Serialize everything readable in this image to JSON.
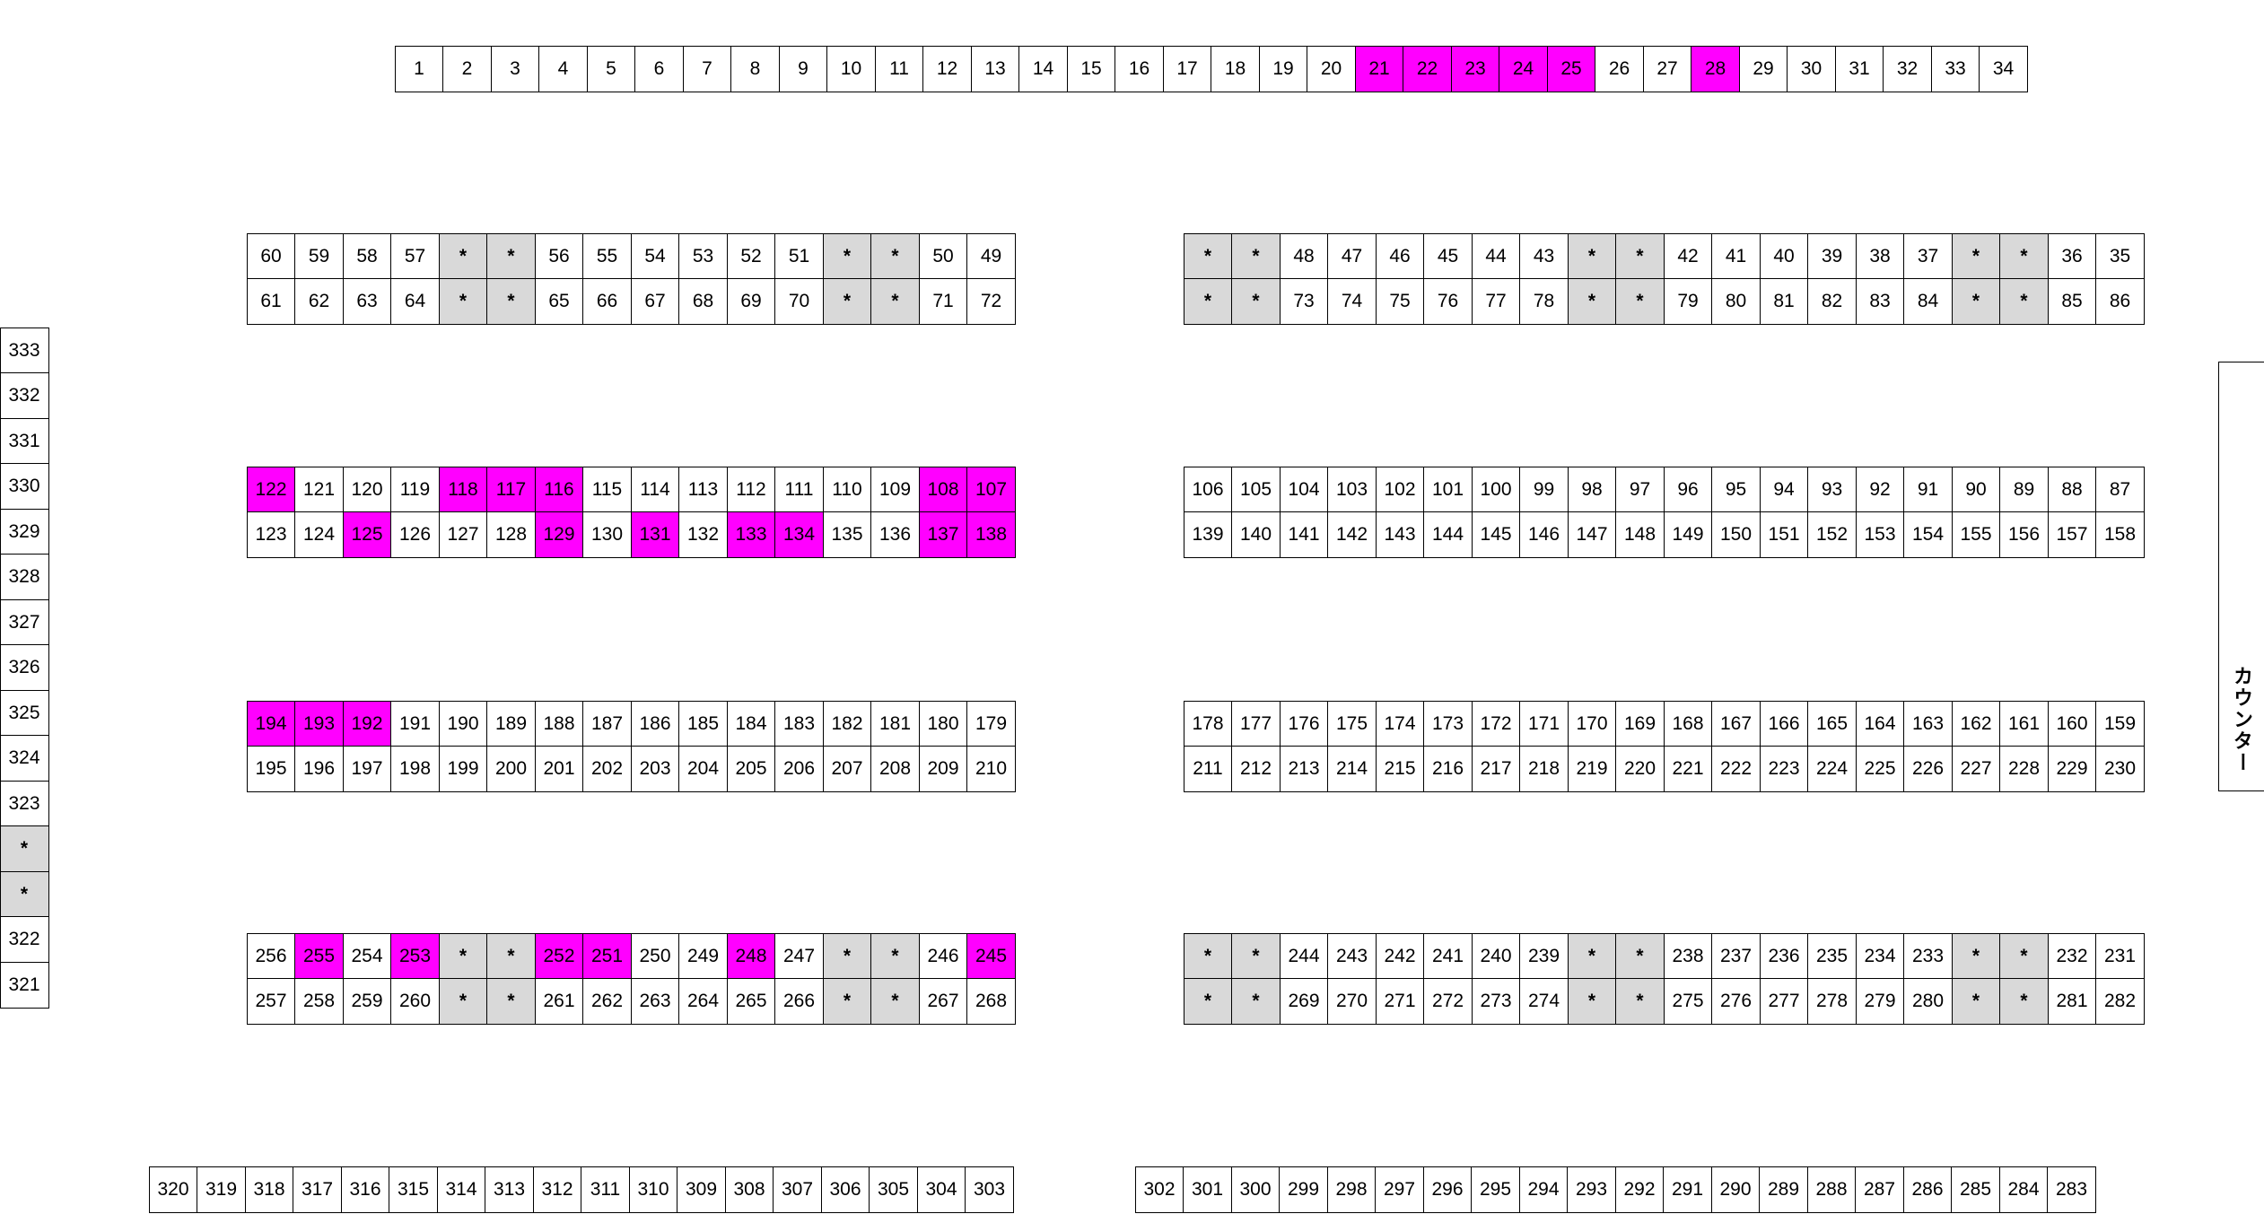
{
  "colors": {
    "reserved": "#ff00ff",
    "unavailable": "#d9d9d9",
    "available": "#ffffff"
  },
  "counter_label": "カウンター",
  "reserved": [
    "21",
    "22",
    "23",
    "24",
    "25",
    "28",
    "122",
    "118",
    "117",
    "116",
    "108",
    "107",
    "125",
    "129",
    "131",
    "133",
    "134",
    "137",
    "138",
    "194",
    "193",
    "192",
    "255",
    "253",
    "252",
    "251",
    "248",
    "245"
  ],
  "blocks": {
    "top": [
      [
        "1",
        "2",
        "3",
        "4",
        "5",
        "6",
        "7",
        "8",
        "9",
        "10",
        "11",
        "12",
        "13",
        "14",
        "15",
        "16",
        "17",
        "18",
        "19",
        "20",
        "21",
        "22",
        "23",
        "24",
        "25",
        "26",
        "27",
        "28",
        "29",
        "30",
        "31",
        "32",
        "33",
        "34"
      ]
    ],
    "left_a": [
      [
        "60",
        "59",
        "58",
        "57",
        "*",
        "*",
        "56",
        "55",
        "54",
        "53",
        "52",
        "51",
        "*",
        "*",
        "50",
        "49"
      ],
      [
        "61",
        "62",
        "63",
        "64",
        "*",
        "*",
        "65",
        "66",
        "67",
        "68",
        "69",
        "70",
        "*",
        "*",
        "71",
        "72"
      ]
    ],
    "right_a": [
      [
        "*",
        "*",
        "48",
        "47",
        "46",
        "45",
        "44",
        "43",
        "*",
        "*",
        "42",
        "41",
        "40",
        "39",
        "38",
        "37",
        "*",
        "*",
        "36",
        "35"
      ],
      [
        "*",
        "*",
        "73",
        "74",
        "75",
        "76",
        "77",
        "78",
        "*",
        "*",
        "79",
        "80",
        "81",
        "82",
        "83",
        "84",
        "*",
        "*",
        "85",
        "86"
      ]
    ],
    "left_b": [
      [
        "122",
        "121",
        "120",
        "119",
        "118",
        "117",
        "116",
        "115",
        "114",
        "113",
        "112",
        "111",
        "110",
        "109",
        "108",
        "107"
      ],
      [
        "123",
        "124",
        "125",
        "126",
        "127",
        "128",
        "129",
        "130",
        "131",
        "132",
        "133",
        "134",
        "135",
        "136",
        "137",
        "138"
      ]
    ],
    "right_b": [
      [
        "106",
        "105",
        "104",
        "103",
        "102",
        "101",
        "100",
        "99",
        "98",
        "97",
        "96",
        "95",
        "94",
        "93",
        "92",
        "91",
        "90",
        "89",
        "88",
        "87"
      ],
      [
        "139",
        "140",
        "141",
        "142",
        "143",
        "144",
        "145",
        "146",
        "147",
        "148",
        "149",
        "150",
        "151",
        "152",
        "153",
        "154",
        "155",
        "156",
        "157",
        "158"
      ]
    ],
    "left_c": [
      [
        "194",
        "193",
        "192",
        "191",
        "190",
        "189",
        "188",
        "187",
        "186",
        "185",
        "184",
        "183",
        "182",
        "181",
        "180",
        "179"
      ],
      [
        "195",
        "196",
        "197",
        "198",
        "199",
        "200",
        "201",
        "202",
        "203",
        "204",
        "205",
        "206",
        "207",
        "208",
        "209",
        "210"
      ]
    ],
    "right_c": [
      [
        "178",
        "177",
        "176",
        "175",
        "174",
        "173",
        "172",
        "171",
        "170",
        "169",
        "168",
        "167",
        "166",
        "165",
        "164",
        "163",
        "162",
        "161",
        "160",
        "159"
      ],
      [
        "211",
        "212",
        "213",
        "214",
        "215",
        "216",
        "217",
        "218",
        "219",
        "220",
        "221",
        "222",
        "223",
        "224",
        "225",
        "226",
        "227",
        "228",
        "229",
        "230"
      ]
    ],
    "left_d": [
      [
        "256",
        "255",
        "254",
        "253",
        "*",
        "*",
        "252",
        "251",
        "250",
        "249",
        "248",
        "247",
        "*",
        "*",
        "246",
        "245"
      ],
      [
        "257",
        "258",
        "259",
        "260",
        "*",
        "*",
        "261",
        "262",
        "263",
        "264",
        "265",
        "266",
        "*",
        "*",
        "267",
        "268"
      ]
    ],
    "right_d": [
      [
        "*",
        "*",
        "244",
        "243",
        "242",
        "241",
        "240",
        "239",
        "*",
        "*",
        "238",
        "237",
        "236",
        "235",
        "234",
        "233",
        "*",
        "*",
        "232",
        "231"
      ],
      [
        "*",
        "*",
        "269",
        "270",
        "271",
        "272",
        "273",
        "274",
        "*",
        "*",
        "275",
        "276",
        "277",
        "278",
        "279",
        "280",
        "*",
        "*",
        "281",
        "282"
      ]
    ],
    "bottom_left": [
      [
        "320",
        "319",
        "318",
        "317",
        "316",
        "315",
        "314",
        "313",
        "312",
        "311",
        "310",
        "309",
        "308",
        "307",
        "306",
        "305",
        "304",
        "303"
      ]
    ],
    "bottom_right": [
      [
        "302",
        "301",
        "300",
        "299",
        "298",
        "297",
        "296",
        "295",
        "294",
        "293",
        "292",
        "291",
        "290",
        "289",
        "288",
        "287",
        "286",
        "285",
        "284",
        "283"
      ]
    ],
    "left_column": [
      [
        "333"
      ],
      [
        "332"
      ],
      [
        "331"
      ],
      [
        "330"
      ],
      [
        "329"
      ],
      [
        "328"
      ],
      [
        "327"
      ],
      [
        "326"
      ],
      [
        "325"
      ],
      [
        "324"
      ],
      [
        "323"
      ],
      [
        "*"
      ],
      [
        "*"
      ],
      [
        "322"
      ],
      [
        "321"
      ]
    ]
  }
}
